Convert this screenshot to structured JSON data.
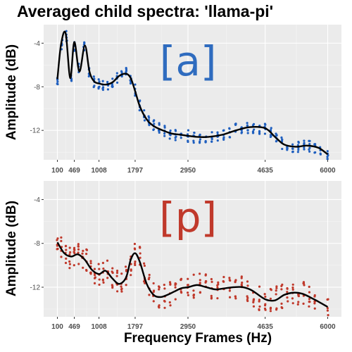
{
  "title": "Averaged child spectra: 'llama-pi'",
  "xlabel": "Frequency Frames (Hz)",
  "chart_data": [
    {
      "type": "scatter",
      "panel_label": "[a]",
      "label_color": "#2f6cbf",
      "point_color": "#1f5fbf",
      "ylabel": "Amplitude (dB)",
      "xticks": [
        100,
        469,
        1008,
        1797,
        2950,
        4635,
        6000
      ],
      "yticks": [
        -4,
        -8,
        -12
      ],
      "ylim": [
        -14.7,
        -2.3
      ],
      "xlim": [
        -200,
        6300
      ],
      "grid": true,
      "smooth_line": {
        "x": [
          100,
          180,
          280,
          380,
          469,
          580,
          700,
          800,
          900,
          1008,
          1150,
          1300,
          1450,
          1600,
          1700,
          1797,
          1900,
          2050,
          2200,
          2400,
          2600,
          2800,
          2950,
          3150,
          3400,
          3700,
          4000,
          4300,
          4635,
          4850,
          5050,
          5300,
          5550,
          5800,
          6000
        ],
        "y": [
          -7.3,
          -4.1,
          -3.1,
          -7.2,
          -3.9,
          -6.6,
          -4.2,
          -6.6,
          -7.5,
          -7.7,
          -7.8,
          -7.6,
          -7.0,
          -6.8,
          -7.2,
          -8.4,
          -9.8,
          -11.0,
          -11.6,
          -12.0,
          -12.3,
          -12.4,
          -12.5,
          -12.6,
          -12.6,
          -12.4,
          -12.0,
          -11.7,
          -11.8,
          -12.6,
          -13.3,
          -13.5,
          -13.4,
          -13.6,
          -14.2
        ]
      },
      "points": {
        "x": [
          100,
          200,
          300,
          400,
          469,
          570,
          680,
          790,
          900,
          1008,
          1100,
          1200,
          1300,
          1400,
          1500,
          1600,
          1700,
          1797,
          1900,
          2000,
          2100,
          2200,
          2320,
          2440,
          2560,
          2680,
          2800,
          2950,
          3080,
          3210,
          3340,
          3470,
          3600,
          3730,
          3860,
          3990,
          4120,
          4250,
          4380,
          4510,
          4635,
          4760,
          4880,
          5000,
          5120,
          5240,
          5360,
          5480,
          5600,
          5720,
          5840,
          6000
        ],
        "y": [
          -7.3,
          -4.2,
          -3.4,
          -7.0,
          -4.2,
          -6.4,
          -4.4,
          -6.5,
          -7.5,
          -7.7,
          -7.8,
          -7.7,
          -7.5,
          -7.2,
          -7.0,
          -6.8,
          -7.2,
          -8.3,
          -9.7,
          -10.6,
          -11.1,
          -11.5,
          -11.8,
          -12.1,
          -12.3,
          -12.4,
          -12.4,
          -12.5,
          -12.6,
          -12.6,
          -12.6,
          -12.6,
          -12.5,
          -12.3,
          -12.1,
          -11.9,
          -11.8,
          -11.7,
          -11.7,
          -11.8,
          -11.9,
          -12.3,
          -12.8,
          -13.2,
          -13.4,
          -13.5,
          -13.5,
          -13.4,
          -13.5,
          -13.6,
          -13.8,
          -14.2
        ]
      }
    },
    {
      "type": "scatter",
      "panel_label": "[p]",
      "label_color": "#c0392b",
      "point_color": "#c0392b",
      "ylabel": "Amplitude (dB)",
      "xticks": [
        100,
        469,
        1008,
        1797,
        2950,
        4635,
        6000
      ],
      "yticks": [
        -4,
        -8,
        -12
      ],
      "ylim": [
        -14.7,
        -2.3
      ],
      "xlim": [
        -200,
        6300
      ],
      "grid": true,
      "smooth_line": {
        "x": [
          100,
          250,
          400,
          550,
          700,
          850,
          1008,
          1150,
          1300,
          1450,
          1600,
          1700,
          1797,
          1900,
          2050,
          2200,
          2350,
          2500,
          2650,
          2800,
          2950,
          3150,
          3350,
          3550,
          3750,
          3950,
          4150,
          4350,
          4635,
          4850,
          5050,
          5250,
          5450,
          5700,
          6000
        ],
        "y": [
          -7.9,
          -8.9,
          -9.2,
          -9.0,
          -9.5,
          -10.4,
          -10.8,
          -10.5,
          -11.2,
          -11.7,
          -11.1,
          -9.5,
          -8.9,
          -9.7,
          -11.7,
          -12.7,
          -12.9,
          -12.7,
          -12.4,
          -12.1,
          -12.0,
          -11.8,
          -12.0,
          -12.2,
          -12.1,
          -12.0,
          -12.0,
          -12.3,
          -13.1,
          -13.2,
          -12.7,
          -12.5,
          -12.6,
          -13.1,
          -13.8
        ]
      },
      "points": {
        "x": [
          100,
          190,
          280,
          370,
          469,
          560,
          650,
          740,
          830,
          920,
          1008,
          1100,
          1200,
          1300,
          1400,
          1500,
          1600,
          1700,
          1797,
          1900,
          2000,
          2100,
          2200,
          2320,
          2440,
          2560,
          2680,
          2800,
          2950,
          3080,
          3210,
          3340,
          3470,
          3600,
          3730,
          3860,
          3990,
          4120,
          4250,
          4380,
          4510,
          4635,
          4760,
          4880,
          5000,
          5120,
          5240,
          5360,
          5480,
          5600,
          5720,
          6000
        ],
        "y": [
          -7.9,
          -8.5,
          -8.9,
          -9.2,
          -9.2,
          -9.0,
          -9.2,
          -9.6,
          -10.2,
          -10.6,
          -10.8,
          -10.7,
          -10.6,
          -11.0,
          -11.5,
          -11.6,
          -11.2,
          -9.8,
          -8.9,
          -9.4,
          -10.6,
          -11.8,
          -12.5,
          -12.9,
          -12.8,
          -12.6,
          -12.3,
          -12.2,
          -12.0,
          -11.9,
          -11.8,
          -11.9,
          -12.1,
          -12.2,
          -12.1,
          -12.0,
          -12.0,
          -12.1,
          -12.3,
          -12.7,
          -13.0,
          -13.1,
          -13.2,
          -13.0,
          -12.8,
          -12.6,
          -12.5,
          -12.5,
          -12.6,
          -12.8,
          -13.1,
          -13.8
        ]
      }
    }
  ]
}
